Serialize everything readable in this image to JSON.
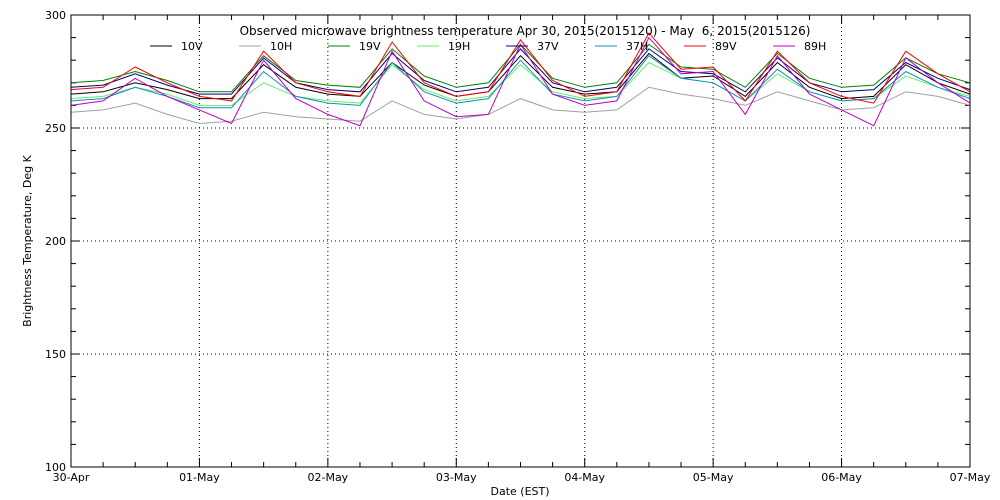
{
  "chart_data": {
    "type": "line",
    "title": "Observed microwave brightness temperature Apr 30, 2015(2015120) - May  6, 2015(2015126)",
    "xlabel": "Date (EST)",
    "ylabel": "Brightness Temperature, Deg K",
    "xlim": [
      "2015-04-30",
      "2015-05-07"
    ],
    "ylim": [
      100,
      300
    ],
    "x_tick_labels": [
      "30-Apr",
      "01-May",
      "02-May",
      "03-May",
      "04-May",
      "05-May",
      "06-May",
      "07-May"
    ],
    "y_tick_labels": [
      "100",
      "150",
      "200",
      "250",
      "300"
    ],
    "grid": true,
    "legend_position": "top",
    "x_dates": [
      "2015-04-30 00:00",
      "2015-04-30 06:00",
      "2015-04-30 12:00",
      "2015-04-30 18:00",
      "2015-05-01 00:00",
      "2015-05-01 06:00",
      "2015-05-01 12:00",
      "2015-05-01 18:00",
      "2015-05-02 00:00",
      "2015-05-02 06:00",
      "2015-05-02 12:00",
      "2015-05-02 18:00",
      "2015-05-03 00:00",
      "2015-05-03 06:00",
      "2015-05-03 12:00",
      "2015-05-03 18:00",
      "2015-05-04 00:00",
      "2015-05-04 06:00",
      "2015-05-04 12:00",
      "2015-05-04 18:00",
      "2015-05-05 00:00",
      "2015-05-05 06:00",
      "2015-05-05 12:00",
      "2015-05-05 18:00",
      "2015-05-06 00:00",
      "2015-05-06 06:00",
      "2015-05-06 12:00",
      "2015-05-06 18:00",
      "2015-05-07 00:00"
    ],
    "series": [
      {
        "name": "10V",
        "color": "#000000",
        "values": [
          265,
          266,
          270,
          267,
          263,
          263,
          278,
          268,
          265,
          264,
          279,
          269,
          264,
          266,
          282,
          268,
          265,
          266,
          283,
          272,
          273,
          264,
          279,
          268,
          263,
          264,
          278,
          270,
          265
        ]
      },
      {
        "name": "10H",
        "color": "#a0a0a0",
        "values": [
          257,
          258,
          261,
          256,
          252,
          253,
          257,
          255,
          254,
          253,
          262,
          256,
          254,
          256,
          263,
          258,
          257,
          258,
          268,
          265,
          263,
          260,
          266,
          262,
          258,
          259,
          266,
          264,
          260
        ]
      },
      {
        "name": "19V",
        "color": "#008000",
        "values": [
          270,
          271,
          275,
          271,
          266,
          266,
          282,
          271,
          269,
          268,
          285,
          273,
          268,
          270,
          287,
          272,
          268,
          270,
          287,
          277,
          276,
          268,
          283,
          272,
          268,
          269,
          281,
          274,
          270
        ]
      },
      {
        "name": "19H",
        "color": "#66ee66",
        "values": [
          263,
          264,
          268,
          265,
          260,
          260,
          270,
          264,
          262,
          261,
          278,
          267,
          262,
          264,
          278,
          266,
          263,
          264,
          279,
          272,
          270,
          262,
          274,
          266,
          262,
          263,
          273,
          268,
          264
        ]
      },
      {
        "name": "37V",
        "color": "#000080",
        "values": [
          268,
          269,
          274,
          269,
          265,
          265,
          281,
          270,
          267,
          266,
          283,
          271,
          266,
          268,
          285,
          270,
          266,
          268,
          285,
          275,
          274,
          266,
          281,
          270,
          266,
          267,
          279,
          272,
          267
        ]
      },
      {
        "name": "37H",
        "color": "#1090c0",
        "values": [
          262,
          263,
          268,
          264,
          259,
          259,
          275,
          264,
          261,
          260,
          279,
          266,
          261,
          263,
          280,
          265,
          262,
          264,
          282,
          272,
          270,
          262,
          276,
          266,
          262,
          263,
          275,
          268,
          263
        ]
      },
      {
        "name": "89V",
        "color": "#ff0000",
        "values": [
          267,
          268,
          277,
          270,
          264,
          262,
          284,
          270,
          266,
          264,
          288,
          270,
          264,
          266,
          289,
          271,
          264,
          266,
          292,
          276,
          277,
          262,
          284,
          270,
          264,
          261,
          284,
          274,
          266
        ]
      },
      {
        "name": "89H",
        "color": "#c000c0",
        "values": [
          260,
          262,
          272,
          264,
          258,
          252,
          280,
          263,
          256,
          251,
          284,
          262,
          255,
          256,
          287,
          265,
          260,
          262,
          290,
          274,
          275,
          256,
          282,
          265,
          258,
          251,
          281,
          270,
          261
        ]
      }
    ]
  }
}
